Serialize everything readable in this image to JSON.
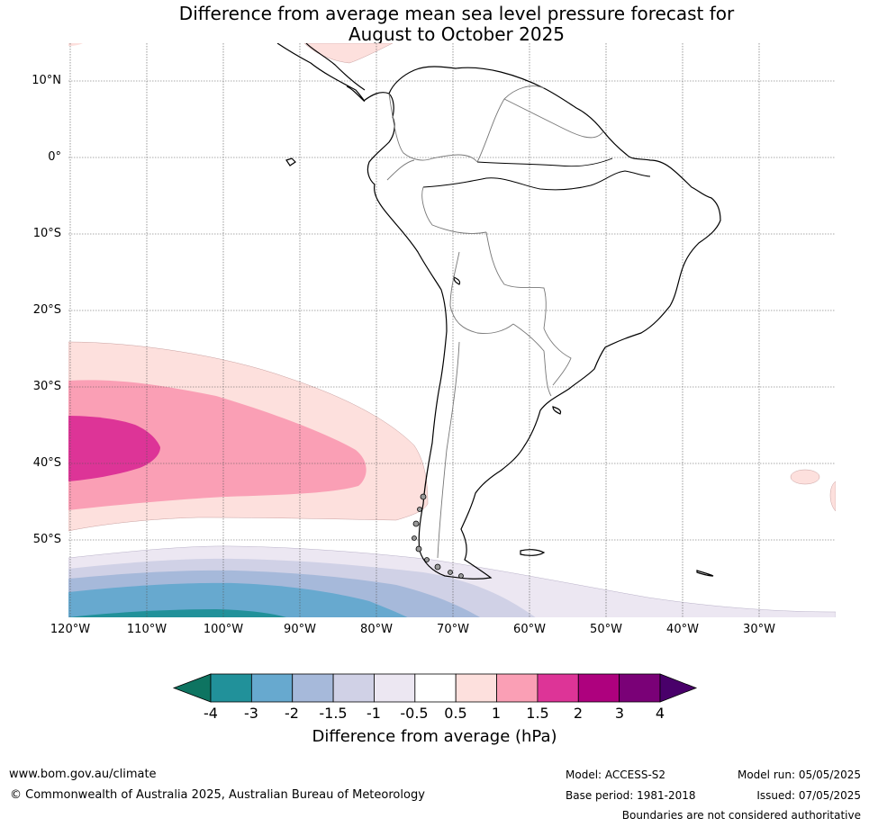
{
  "title_line1": "Difference from average mean sea level pressure forecast for",
  "title_line2": "August to October 2025",
  "map": {
    "region": "South America",
    "lat_labels": [
      "10°N",
      "0°",
      "10°S",
      "20°S",
      "30°S",
      "40°S",
      "50°S"
    ],
    "lon_labels": [
      "120°W",
      "110°W",
      "100°W",
      "90°W",
      "80°W",
      "70°W",
      "60°W",
      "50°W",
      "40°W",
      "30°W"
    ]
  },
  "colorbar": {
    "label": "Difference from average (hPa)",
    "ticks": [
      "-4",
      "-3",
      "-2",
      "-1.5",
      "-1",
      "-0.5",
      "0.5",
      "1",
      "1.5",
      "2",
      "3",
      "4"
    ],
    "colors": [
      "#0e7461",
      "#21919a",
      "#67a9cf",
      "#a6b9da",
      "#d0d1e6",
      "#ece7f2",
      "#ffffff",
      "#fde0dd",
      "#fa9fb5",
      "#dd3497",
      "#ae017e",
      "#7a0177",
      "#49006a"
    ]
  },
  "footer": {
    "website": "www.bom.gov.au/climate",
    "copyright": "© Commonwealth of Australia 2025, Australian Bureau of Meteorology",
    "model": "Model: ACCESS-S2",
    "base_period": "Base period: 1981-2018",
    "model_run": "Model run: 05/05/2025",
    "issued": "Issued: 07/05/2025",
    "disclaimer": "Boundaries are not considered authoritative"
  }
}
